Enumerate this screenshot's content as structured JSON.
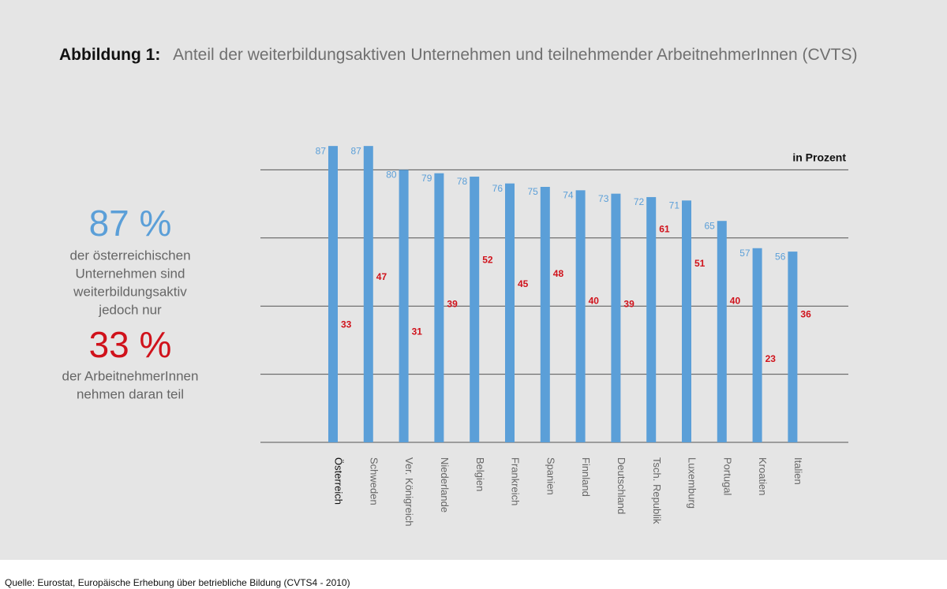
{
  "chart_data": {
    "type": "bar",
    "title_label": "Abbildung 1:",
    "title": "Anteil der weiterbildungsaktiven Unternehmen und teilnehmender ArbeitnehmerInnen (CVTS)",
    "unit_label": "in Prozent",
    "categories": [
      "Österreich",
      "Schweden",
      "Ver. Königreich",
      "Niederlande",
      "Belgien",
      "Frankreich",
      "Spanien",
      "Finnland",
      "Deutschland",
      "Tsch. Republik",
      "Luxemburg",
      "Portugal",
      "Kroatien",
      "Italien"
    ],
    "series": [
      {
        "color": "#5b9fd8",
        "values": [
          87,
          87,
          80,
          79,
          78,
          76,
          75,
          74,
          73,
          72,
          71,
          65,
          57,
          56
        ]
      },
      {
        "color": "#d0121b",
        "values": [
          33,
          47,
          31,
          39,
          52,
          45,
          48,
          40,
          39,
          61,
          51,
          40,
          23,
          36
        ]
      }
    ],
    "ylim": [
      0,
      100
    ],
    "yticks": [
      0,
      20,
      40,
      60,
      80
    ],
    "grid": true,
    "annotations": {
      "big1": "87 %",
      "text1": [
        "der österreichischen",
        "Unternehmen sind",
        "weiterbildungsaktiv",
        "jedoch nur"
      ],
      "big2": "33 %",
      "text2": [
        "der ArbeitnehmerInnen",
        "nehmen daran teil"
      ]
    },
    "source": "Quelle: Eurostat, Europäische Erhebung über betriebliche Bildung (CVTS4 - 2010)"
  }
}
